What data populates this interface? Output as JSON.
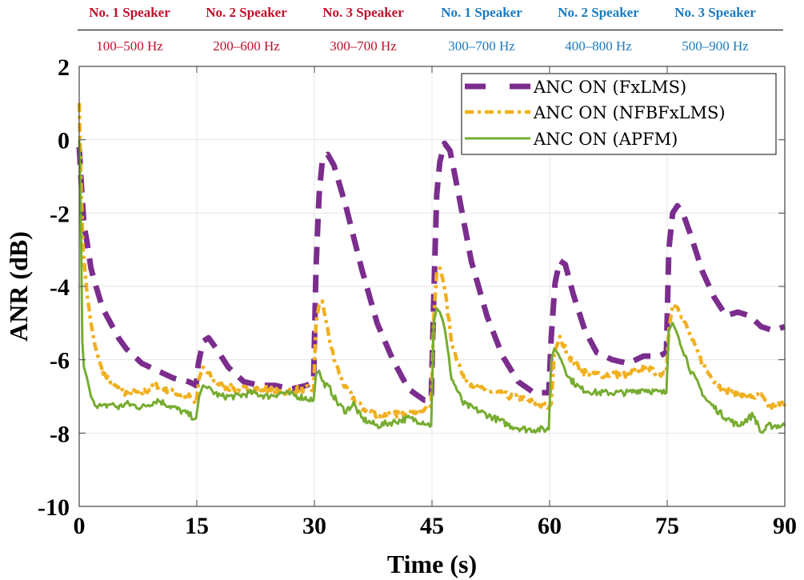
{
  "header": {
    "speakers": [
      {
        "label": "No. 1 Speaker",
        "band": "100–500 Hz",
        "color": "#c0102a"
      },
      {
        "label": "No. 2 Speaker",
        "band": "200–600 Hz",
        "color": "#c0102a"
      },
      {
        "label": "No. 3 Speaker",
        "band": "300–700 Hz",
        "color": "#c0102a"
      },
      {
        "label": "No. 1 Speaker",
        "band": "300–700 Hz",
        "color": "#1a7ac0"
      },
      {
        "label": "No. 2 Speaker",
        "band": "400–800 Hz",
        "color": "#1a7ac0"
      },
      {
        "label": "No. 3 Speaker",
        "band": "500–900 Hz",
        "color": "#1a7ac0"
      }
    ]
  },
  "chart_data": {
    "type": "line",
    "title": "",
    "xlabel": "Time (s)",
    "ylabel": "ANR (dB)",
    "xlim": [
      0,
      90
    ],
    "ylim": [
      -10,
      2
    ],
    "xticks": [
      0,
      15,
      30,
      45,
      60,
      75,
      90
    ],
    "yticks": [
      2,
      0,
      -2,
      -4,
      -6,
      -8,
      -10
    ],
    "xtick_labels": [
      "0",
      "15",
      "30",
      "45",
      "60",
      "75",
      "90"
    ],
    "ytick_labels": [
      "2",
      "0",
      "-2",
      "-4",
      "-6",
      "-8",
      "-10"
    ],
    "grid": true,
    "legend_position": "top-right",
    "series": [
      {
        "name": "ANC ON (FxLMS)",
        "color": "#7b2d8e",
        "style": "dashed",
        "x": [
          0,
          0.3,
          0.6,
          1,
          1.5,
          2,
          3,
          4,
          5,
          6,
          8,
          10,
          12,
          14,
          14.9,
          15.2,
          15.8,
          16.5,
          17.5,
          19,
          21,
          23,
          25,
          27,
          29,
          29.9,
          30.2,
          30.6,
          31,
          31.7,
          32.5,
          34,
          36,
          38,
          40,
          42,
          44,
          44.9,
          45.2,
          45.6,
          46,
          46.6,
          47.3,
          48.5,
          50,
          52,
          54,
          56,
          58,
          59.9,
          60.2,
          60.7,
          61.3,
          62,
          63,
          64.5,
          66,
          68,
          70,
          72,
          74,
          74.9,
          75.2,
          75.7,
          76.3,
          77,
          78,
          79.5,
          81,
          82.5,
          84,
          85.5,
          87,
          88.5,
          90
        ],
        "y": [
          -0.2,
          -1.3,
          -2.3,
          -2.8,
          -3.5,
          -3.9,
          -4.6,
          -5.0,
          -5.4,
          -5.7,
          -6.1,
          -6.3,
          -6.5,
          -6.6,
          -6.7,
          -6.1,
          -5.5,
          -5.4,
          -5.7,
          -6.2,
          -6.6,
          -6.7,
          -6.7,
          -6.8,
          -6.7,
          -6.6,
          -3.5,
          -1.5,
          -0.6,
          -0.4,
          -0.7,
          -1.8,
          -3.5,
          -5.0,
          -6.0,
          -6.8,
          -7.1,
          -7.1,
          -4.5,
          -1.5,
          -0.6,
          -0.1,
          -0.3,
          -1.6,
          -3.3,
          -4.8,
          -5.9,
          -6.6,
          -6.9,
          -6.9,
          -5.4,
          -3.9,
          -3.3,
          -3.4,
          -4.2,
          -5.2,
          -5.8,
          -6.0,
          -6.1,
          -5.9,
          -5.9,
          -5.8,
          -3.0,
          -2.0,
          -1.8,
          -2.0,
          -2.6,
          -3.6,
          -4.3,
          -4.8,
          -4.7,
          -4.8,
          -5.1,
          -5.2,
          -5.1
        ]
      },
      {
        "name": "ANC ON (NFBFxLMS)",
        "color": "#f0b020",
        "style": "dashdot",
        "x": [
          0,
          0.2,
          0.5,
          1,
          1.5,
          2,
          2.5,
          3,
          4,
          5,
          6,
          8,
          10,
          12,
          14,
          14.9,
          15.3,
          15.8,
          16.5,
          18,
          20,
          22,
          24,
          26,
          28,
          29.9,
          30.2,
          30.6,
          31,
          31.5,
          32.5,
          34,
          36,
          38,
          40,
          42,
          44,
          44.9,
          45.2,
          45.6,
          46,
          46.5,
          47.5,
          49,
          51,
          53,
          55,
          57,
          59.9,
          60.2,
          60.6,
          61.3,
          62.5,
          64,
          66,
          68,
          70,
          72,
          74,
          74.9,
          75.2,
          75.7,
          76.5,
          78,
          80,
          82,
          84,
          86,
          87,
          88,
          90
        ],
        "y": [
          1.0,
          -1.0,
          -3.0,
          -4.2,
          -5.0,
          -5.6,
          -6.0,
          -6.3,
          -6.6,
          -6.8,
          -6.9,
          -6.9,
          -6.7,
          -6.9,
          -7.0,
          -7.2,
          -6.5,
          -6.2,
          -6.4,
          -6.7,
          -6.8,
          -6.8,
          -6.8,
          -6.9,
          -6.8,
          -6.8,
          -5.0,
          -4.5,
          -4.4,
          -5.0,
          -6.0,
          -6.8,
          -7.3,
          -7.5,
          -7.5,
          -7.4,
          -7.4,
          -7.2,
          -5.0,
          -3.6,
          -3.5,
          -3.9,
          -5.5,
          -6.5,
          -6.8,
          -6.9,
          -7.0,
          -7.1,
          -7.3,
          -7.2,
          -5.8,
          -5.4,
          -5.9,
          -6.3,
          -6.4,
          -6.4,
          -6.4,
          -6.2,
          -6.4,
          -6.3,
          -5.2,
          -4.5,
          -4.6,
          -5.4,
          -6.3,
          -6.8,
          -6.9,
          -7.0,
          -7.0,
          -7.3,
          -7.2
        ]
      },
      {
        "name": "ANC ON (APFM)",
        "color": "#77ac30",
        "style": "solid",
        "x": [
          0,
          0.2,
          0.4,
          0.6,
          1,
          1.5,
          2,
          3,
          4,
          5,
          6,
          8,
          10,
          12,
          14,
          14.9,
          15.3,
          15.8,
          16.5,
          18,
          20,
          22,
          24,
          26,
          28,
          29.9,
          30.2,
          30.6,
          31,
          32,
          33,
          34,
          35,
          36,
          38,
          40,
          42,
          44,
          44.9,
          45.2,
          45.6,
          46,
          46.5,
          47.5,
          49,
          51,
          53,
          55,
          57,
          59.9,
          60.2,
          60.6,
          61.3,
          62.5,
          64,
          66,
          68,
          70,
          72,
          74,
          74.9,
          75.2,
          75.7,
          76.5,
          78,
          80,
          82,
          84,
          86,
          87,
          88,
          90
        ],
        "y": [
          0.0,
          -2.0,
          -5.5,
          -6.2,
          -6.5,
          -7.0,
          -7.2,
          -7.3,
          -7.2,
          -7.3,
          -7.2,
          -7.3,
          -7.1,
          -7.3,
          -7.5,
          -7.6,
          -7.0,
          -6.7,
          -6.8,
          -7.0,
          -7.0,
          -6.9,
          -7.0,
          -6.9,
          -7.0,
          -7.1,
          -6.4,
          -6.3,
          -6.6,
          -6.8,
          -7.2,
          -7.4,
          -7.2,
          -7.6,
          -7.8,
          -7.7,
          -7.6,
          -7.7,
          -7.8,
          -5.0,
          -4.6,
          -4.7,
          -5.0,
          -6.5,
          -7.2,
          -7.4,
          -7.6,
          -7.8,
          -7.9,
          -7.9,
          -6.0,
          -5.7,
          -5.9,
          -6.5,
          -6.8,
          -6.9,
          -6.9,
          -6.9,
          -6.8,
          -6.9,
          -6.9,
          -5.2,
          -5.0,
          -5.4,
          -6.3,
          -7.1,
          -7.5,
          -7.8,
          -7.5,
          -8.0,
          -7.8,
          -7.8
        ]
      }
    ]
  }
}
